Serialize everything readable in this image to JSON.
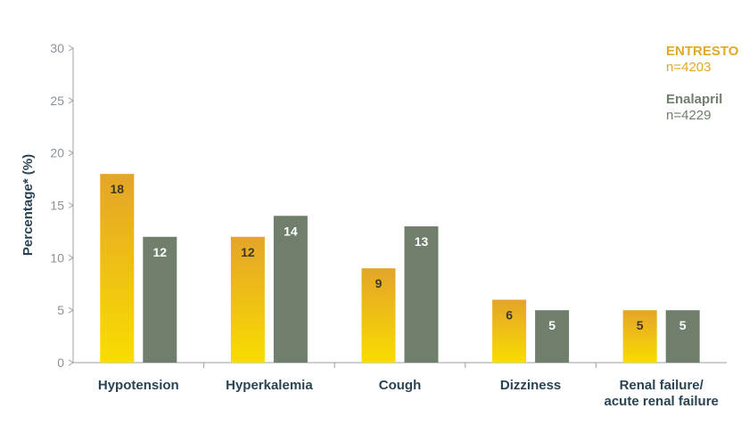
{
  "colors": {
    "entresto_top": "#e4a429",
    "entresto_bottom": "#f9dc00",
    "enalapril": "#6f7f6c",
    "axis": "#9aa0a4",
    "text_dark": "#2a4454",
    "tick_text": "#8a9198",
    "entresto_legend": "#e2a82a",
    "enalapril_legend": "#6f7f6c"
  },
  "chart_data": {
    "type": "bar",
    "categories": [
      "Hypotension",
      "Hyperkalemia",
      "Cough",
      "Dizziness",
      "Renal failure/ acute renal failure"
    ],
    "category_lines": [
      [
        "Hypotension"
      ],
      [
        "Hyperkalemia"
      ],
      [
        "Cough"
      ],
      [
        "Dizziness"
      ],
      [
        "Renal failure/",
        "acute renal failure"
      ]
    ],
    "series": [
      {
        "name": "ENTRESTO",
        "n_label": "n=4203",
        "values": [
          18,
          12,
          9,
          6,
          5
        ]
      },
      {
        "name": "Enalapril",
        "n_label": "n=4229",
        "values": [
          12,
          14,
          13,
          5,
          5
        ]
      }
    ],
    "ylabel": "Percentage* (%)",
    "ylim": [
      0,
      30
    ],
    "yticks": [
      0,
      5,
      10,
      15,
      20,
      25,
      30
    ],
    "grid": false,
    "legend": "top-right",
    "data_labels": true
  }
}
